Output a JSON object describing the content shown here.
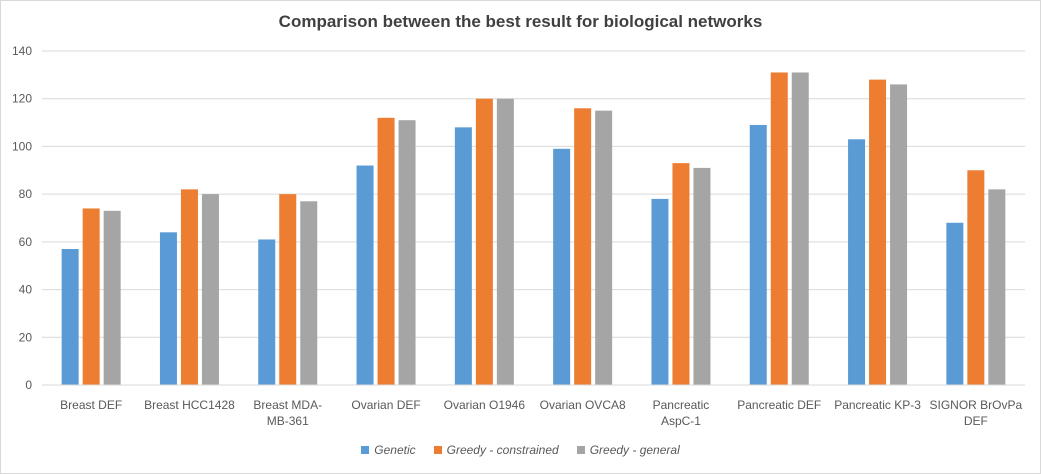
{
  "chart_data": {
    "type": "bar",
    "title": "Comparison between the best result for biological networks",
    "categories": [
      [
        "Breast DEF"
      ],
      [
        "Breast HCC1428"
      ],
      [
        "Breast MDA-",
        "MB-361"
      ],
      [
        "Ovarian DEF"
      ],
      [
        "Ovarian O1946"
      ],
      [
        "Ovarian OVCA8"
      ],
      [
        "Pancreatic",
        "AspC-1"
      ],
      [
        "Pancreatic DEF"
      ],
      [
        "Pancreatic KP-3"
      ],
      [
        "SIGNOR BrOvPa",
        "DEF"
      ]
    ],
    "series": [
      {
        "name": "Genetic",
        "color": "#5b9bd5",
        "values": [
          57,
          64,
          61,
          92,
          108,
          99,
          78,
          109,
          103,
          68
        ]
      },
      {
        "name": "Greedy - constrained",
        "color": "#ed7d31",
        "values": [
          74,
          82,
          80,
          112,
          120,
          116,
          93,
          131,
          128,
          90
        ]
      },
      {
        "name": "Greedy - general",
        "color": "#a5a5a5",
        "values": [
          73,
          80,
          77,
          111,
          120,
          115,
          91,
          131,
          126,
          82
        ]
      }
    ],
    "ylim": [
      0,
      140
    ],
    "yticks": [
      0,
      20,
      40,
      60,
      80,
      100,
      120,
      140
    ],
    "grid": true,
    "legend_position": "bottom"
  }
}
